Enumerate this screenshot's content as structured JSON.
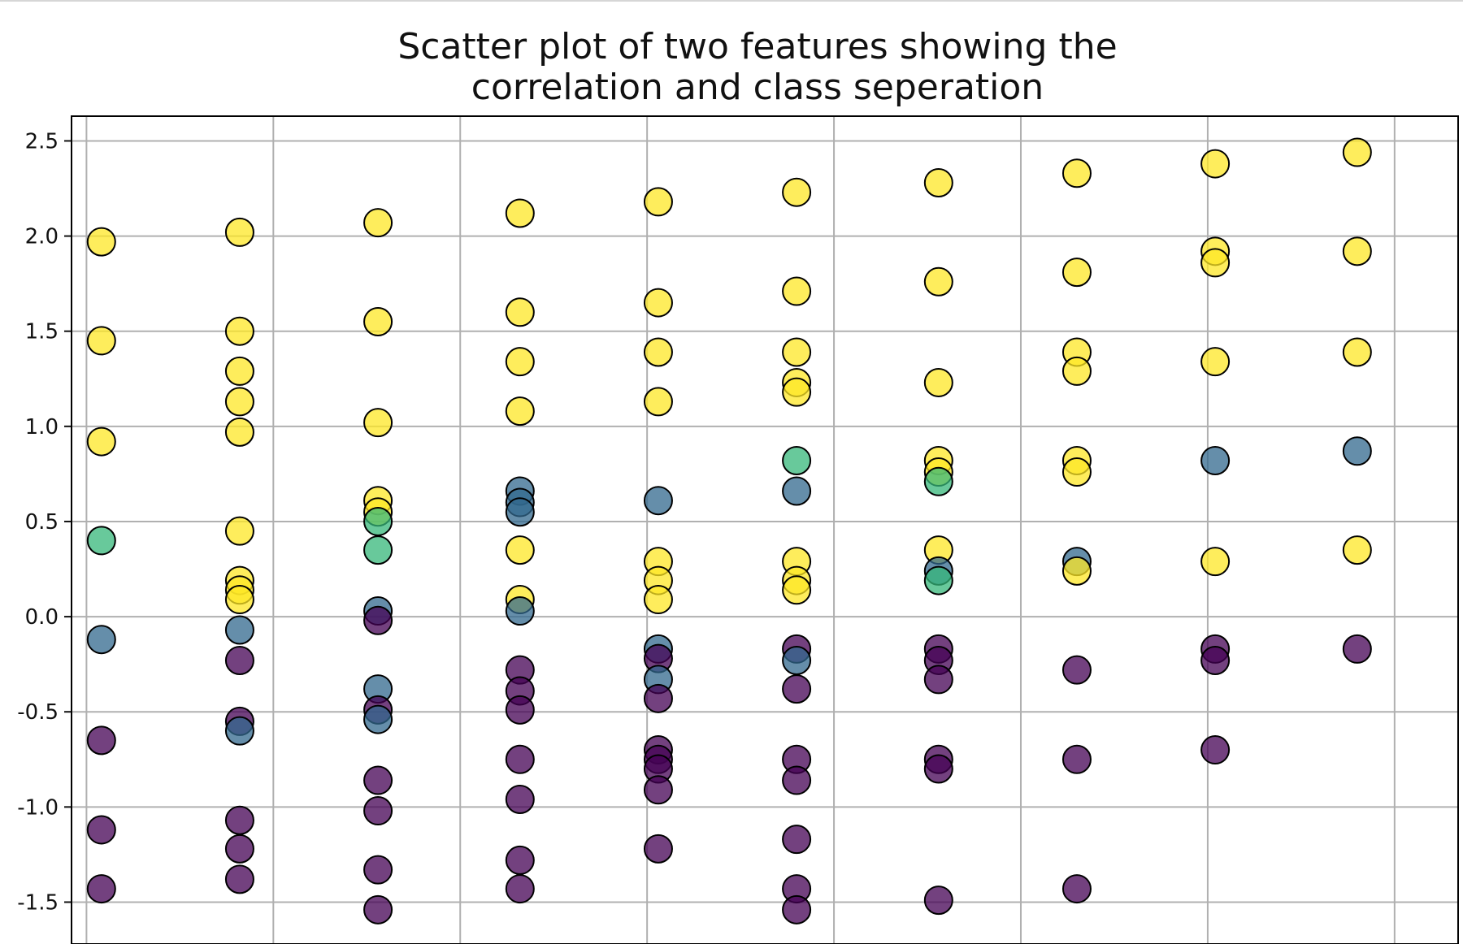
{
  "chart_data": {
    "type": "scatter",
    "title_lines": [
      "Scatter plot of two features showing the",
      "correlation and class seperation"
    ],
    "xlabel": "",
    "ylabel": "",
    "ylim": [
      -1.72,
      2.63
    ],
    "xlim": [
      -0.04,
      3.67
    ],
    "y_ticks": [
      -1.5,
      -1.0,
      -0.5,
      0.0,
      0.5,
      1.0,
      1.5,
      2.0,
      2.5
    ],
    "y_tick_labels": [
      "-1.5",
      "-1.0",
      "-0.5",
      "0.0",
      "0.5",
      "1.0",
      "1.5",
      "2.0",
      "2.5"
    ],
    "x_ticks": [
      0.0,
      0.5,
      1.0,
      1.5,
      2.0,
      2.5,
      3.0,
      3.5
    ],
    "grid": true,
    "colormap": "viridis",
    "class_colors": {
      "0": "#440154",
      "1": "#31688e",
      "2": "#35b779",
      "3": "#fde725"
    },
    "points": [
      {
        "x": 0.04,
        "y": 1.97,
        "cls": 3
      },
      {
        "x": 0.04,
        "y": 1.45,
        "cls": 3
      },
      {
        "x": 0.04,
        "y": 0.92,
        "cls": 3
      },
      {
        "x": 0.04,
        "y": 0.4,
        "cls": 2
      },
      {
        "x": 0.04,
        "y": -0.12,
        "cls": 1
      },
      {
        "x": 0.04,
        "y": -0.65,
        "cls": 0
      },
      {
        "x": 0.04,
        "y": -1.12,
        "cls": 0
      },
      {
        "x": 0.04,
        "y": -1.43,
        "cls": 0
      },
      {
        "x": 0.41,
        "y": 2.02,
        "cls": 3
      },
      {
        "x": 0.41,
        "y": 1.5,
        "cls": 3
      },
      {
        "x": 0.41,
        "y": 1.29,
        "cls": 3
      },
      {
        "x": 0.41,
        "y": 1.13,
        "cls": 3
      },
      {
        "x": 0.41,
        "y": 0.97,
        "cls": 3
      },
      {
        "x": 0.41,
        "y": 0.45,
        "cls": 3
      },
      {
        "x": 0.41,
        "y": 0.19,
        "cls": 3
      },
      {
        "x": 0.41,
        "y": 0.14,
        "cls": 3
      },
      {
        "x": 0.41,
        "y": 0.09,
        "cls": 3
      },
      {
        "x": 0.41,
        "y": -0.07,
        "cls": 1
      },
      {
        "x": 0.41,
        "y": -0.23,
        "cls": 0
      },
      {
        "x": 0.41,
        "y": -0.55,
        "cls": 0
      },
      {
        "x": 0.41,
        "y": -0.6,
        "cls": 1
      },
      {
        "x": 0.41,
        "y": -1.07,
        "cls": 0
      },
      {
        "x": 0.41,
        "y": -1.22,
        "cls": 0
      },
      {
        "x": 0.41,
        "y": -1.38,
        "cls": 0
      },
      {
        "x": 0.78,
        "y": 2.07,
        "cls": 3
      },
      {
        "x": 0.78,
        "y": 1.55,
        "cls": 3
      },
      {
        "x": 0.78,
        "y": 1.02,
        "cls": 3
      },
      {
        "x": 0.78,
        "y": 0.61,
        "cls": 3
      },
      {
        "x": 0.78,
        "y": 0.55,
        "cls": 3
      },
      {
        "x": 0.78,
        "y": 0.5,
        "cls": 2
      },
      {
        "x": 0.78,
        "y": 0.35,
        "cls": 2
      },
      {
        "x": 0.78,
        "y": 0.03,
        "cls": 1
      },
      {
        "x": 0.78,
        "y": -0.02,
        "cls": 0
      },
      {
        "x": 0.78,
        "y": -0.38,
        "cls": 1
      },
      {
        "x": 0.78,
        "y": -0.49,
        "cls": 0
      },
      {
        "x": 0.78,
        "y": -0.54,
        "cls": 1
      },
      {
        "x": 0.78,
        "y": -0.86,
        "cls": 0
      },
      {
        "x": 0.78,
        "y": -1.02,
        "cls": 0
      },
      {
        "x": 0.78,
        "y": -1.33,
        "cls": 0
      },
      {
        "x": 0.78,
        "y": -1.54,
        "cls": 0
      },
      {
        "x": 1.16,
        "y": 2.12,
        "cls": 3
      },
      {
        "x": 1.16,
        "y": 1.6,
        "cls": 3
      },
      {
        "x": 1.16,
        "y": 1.34,
        "cls": 3
      },
      {
        "x": 1.16,
        "y": 1.08,
        "cls": 3
      },
      {
        "x": 1.16,
        "y": 0.66,
        "cls": 1
      },
      {
        "x": 1.16,
        "y": 0.6,
        "cls": 1
      },
      {
        "x": 1.16,
        "y": 0.55,
        "cls": 1
      },
      {
        "x": 1.16,
        "y": 0.35,
        "cls": 3
      },
      {
        "x": 1.16,
        "y": 0.09,
        "cls": 3
      },
      {
        "x": 1.16,
        "y": 0.03,
        "cls": 1
      },
      {
        "x": 1.16,
        "y": -0.28,
        "cls": 0
      },
      {
        "x": 1.16,
        "y": -0.39,
        "cls": 0
      },
      {
        "x": 1.16,
        "y": -0.49,
        "cls": 0
      },
      {
        "x": 1.16,
        "y": -0.75,
        "cls": 0
      },
      {
        "x": 1.16,
        "y": -0.96,
        "cls": 0
      },
      {
        "x": 1.16,
        "y": -1.28,
        "cls": 0
      },
      {
        "x": 1.16,
        "y": -1.43,
        "cls": 0
      },
      {
        "x": 1.53,
        "y": 2.18,
        "cls": 3
      },
      {
        "x": 1.53,
        "y": 1.65,
        "cls": 3
      },
      {
        "x": 1.53,
        "y": 1.39,
        "cls": 3
      },
      {
        "x": 1.53,
        "y": 1.13,
        "cls": 3
      },
      {
        "x": 1.53,
        "y": 0.61,
        "cls": 1
      },
      {
        "x": 1.53,
        "y": 0.29,
        "cls": 3
      },
      {
        "x": 1.53,
        "y": 0.19,
        "cls": 3
      },
      {
        "x": 1.53,
        "y": 0.09,
        "cls": 3
      },
      {
        "x": 1.53,
        "y": -0.17,
        "cls": 1
      },
      {
        "x": 1.53,
        "y": -0.22,
        "cls": 0
      },
      {
        "x": 1.53,
        "y": -0.33,
        "cls": 1
      },
      {
        "x": 1.53,
        "y": -0.43,
        "cls": 0
      },
      {
        "x": 1.53,
        "y": -0.7,
        "cls": 0
      },
      {
        "x": 1.53,
        "y": -0.75,
        "cls": 0
      },
      {
        "x": 1.53,
        "y": -0.8,
        "cls": 0
      },
      {
        "x": 1.53,
        "y": -0.91,
        "cls": 0
      },
      {
        "x": 1.53,
        "y": -1.22,
        "cls": 0
      },
      {
        "x": 1.9,
        "y": 2.23,
        "cls": 3
      },
      {
        "x": 1.9,
        "y": 1.71,
        "cls": 3
      },
      {
        "x": 1.9,
        "y": 1.39,
        "cls": 3
      },
      {
        "x": 1.9,
        "y": 1.23,
        "cls": 3
      },
      {
        "x": 1.9,
        "y": 1.18,
        "cls": 3
      },
      {
        "x": 1.9,
        "y": 0.82,
        "cls": 2
      },
      {
        "x": 1.9,
        "y": 0.66,
        "cls": 1
      },
      {
        "x": 1.9,
        "y": 0.29,
        "cls": 3
      },
      {
        "x": 1.9,
        "y": 0.19,
        "cls": 3
      },
      {
        "x": 1.9,
        "y": 0.14,
        "cls": 3
      },
      {
        "x": 1.9,
        "y": -0.17,
        "cls": 0
      },
      {
        "x": 1.9,
        "y": -0.23,
        "cls": 1
      },
      {
        "x": 1.9,
        "y": -0.38,
        "cls": 0
      },
      {
        "x": 1.9,
        "y": -0.75,
        "cls": 0
      },
      {
        "x": 1.9,
        "y": -0.86,
        "cls": 0
      },
      {
        "x": 1.9,
        "y": -1.17,
        "cls": 0
      },
      {
        "x": 1.9,
        "y": -1.43,
        "cls": 0
      },
      {
        "x": 1.9,
        "y": -1.54,
        "cls": 0
      },
      {
        "x": 2.28,
        "y": 2.28,
        "cls": 3
      },
      {
        "x": 2.28,
        "y": 1.76,
        "cls": 3
      },
      {
        "x": 2.28,
        "y": 1.23,
        "cls": 3
      },
      {
        "x": 2.28,
        "y": 0.82,
        "cls": 3
      },
      {
        "x": 2.28,
        "y": 0.76,
        "cls": 3
      },
      {
        "x": 2.28,
        "y": 0.71,
        "cls": 2
      },
      {
        "x": 2.28,
        "y": 0.35,
        "cls": 3
      },
      {
        "x": 2.28,
        "y": 0.24,
        "cls": 1
      },
      {
        "x": 2.28,
        "y": 0.19,
        "cls": 2
      },
      {
        "x": 2.28,
        "y": -0.17,
        "cls": 0
      },
      {
        "x": 2.28,
        "y": -0.23,
        "cls": 0
      },
      {
        "x": 2.28,
        "y": -0.33,
        "cls": 0
      },
      {
        "x": 2.28,
        "y": -0.75,
        "cls": 0
      },
      {
        "x": 2.28,
        "y": -0.8,
        "cls": 0
      },
      {
        "x": 2.28,
        "y": -1.49,
        "cls": 0
      },
      {
        "x": 2.65,
        "y": 2.33,
        "cls": 3
      },
      {
        "x": 2.65,
        "y": 1.81,
        "cls": 3
      },
      {
        "x": 2.65,
        "y": 1.39,
        "cls": 3
      },
      {
        "x": 2.65,
        "y": 1.29,
        "cls": 3
      },
      {
        "x": 2.65,
        "y": 0.82,
        "cls": 3
      },
      {
        "x": 2.65,
        "y": 0.76,
        "cls": 3
      },
      {
        "x": 2.65,
        "y": 0.29,
        "cls": 1
      },
      {
        "x": 2.65,
        "y": 0.24,
        "cls": 3
      },
      {
        "x": 2.65,
        "y": -0.28,
        "cls": 0
      },
      {
        "x": 2.65,
        "y": -0.75,
        "cls": 0
      },
      {
        "x": 2.65,
        "y": -1.43,
        "cls": 0
      },
      {
        "x": 3.02,
        "y": 2.38,
        "cls": 3
      },
      {
        "x": 3.02,
        "y": 1.92,
        "cls": 3
      },
      {
        "x": 3.02,
        "y": 1.86,
        "cls": 3
      },
      {
        "x": 3.02,
        "y": 1.34,
        "cls": 3
      },
      {
        "x": 3.02,
        "y": 0.82,
        "cls": 1
      },
      {
        "x": 3.02,
        "y": 0.29,
        "cls": 3
      },
      {
        "x": 3.02,
        "y": -0.17,
        "cls": 0
      },
      {
        "x": 3.02,
        "y": -0.23,
        "cls": 0
      },
      {
        "x": 3.02,
        "y": -0.7,
        "cls": 0
      },
      {
        "x": 3.4,
        "y": 2.44,
        "cls": 3
      },
      {
        "x": 3.4,
        "y": 1.92,
        "cls": 3
      },
      {
        "x": 3.4,
        "y": 1.39,
        "cls": 3
      },
      {
        "x": 3.4,
        "y": 0.87,
        "cls": 1
      },
      {
        "x": 3.4,
        "y": 0.35,
        "cls": 3
      },
      {
        "x": 3.4,
        "y": -0.17,
        "cls": 0
      }
    ]
  }
}
